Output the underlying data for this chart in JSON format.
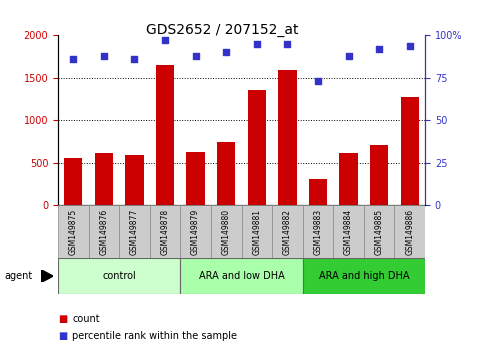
{
  "title": "GDS2652 / 207152_at",
  "samples": [
    "GSM149875",
    "GSM149876",
    "GSM149877",
    "GSM149878",
    "GSM149879",
    "GSM149880",
    "GSM149881",
    "GSM149882",
    "GSM149883",
    "GSM149884",
    "GSM149885",
    "GSM149886"
  ],
  "counts": [
    560,
    610,
    590,
    1650,
    630,
    740,
    1360,
    1590,
    310,
    610,
    710,
    1280
  ],
  "percentiles": [
    86,
    88,
    86,
    97,
    88,
    90,
    95,
    95,
    73,
    88,
    92,
    94
  ],
  "groups": [
    {
      "label": "control",
      "start": 0,
      "end": 4,
      "color": "#ccffcc"
    },
    {
      "label": "ARA and low DHA",
      "start": 4,
      "end": 8,
      "color": "#aaffaa"
    },
    {
      "label": "ARA and high DHA",
      "start": 8,
      "end": 12,
      "color": "#33cc33"
    }
  ],
  "bar_color": "#cc0000",
  "dot_color": "#3333cc",
  "ylim_left": [
    0,
    2000
  ],
  "ylim_right": [
    0,
    100
  ],
  "yticks_left": [
    0,
    500,
    1000,
    1500,
    2000
  ],
  "yticks_right": [
    0,
    25,
    50,
    75,
    100
  ],
  "ytick_labels_right": [
    "0",
    "25",
    "50",
    "75",
    "100%"
  ],
  "agent_label": "agent",
  "legend_count": "count",
  "legend_percentile": "percentile rank within the sample",
  "sample_box_color": "#cccccc",
  "sample_box_edge": "#888888"
}
